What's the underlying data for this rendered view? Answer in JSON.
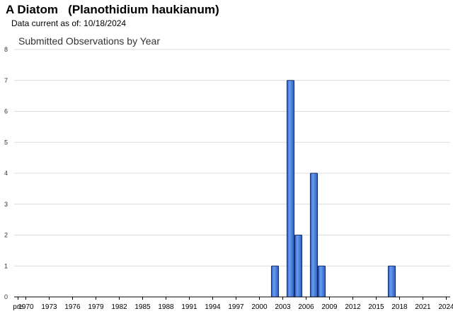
{
  "header": {
    "title": "A Diatom   (Planothidium haukianum)",
    "data_current": "Data current as of: 10/18/2024"
  },
  "chart_data": {
    "type": "bar",
    "title": "Submitted Observations by Year",
    "xlabel": "",
    "ylabel": "",
    "ylim": [
      0,
      8
    ],
    "y_ticks": [
      0,
      1,
      2,
      3,
      4,
      5,
      6,
      7,
      8
    ],
    "x_tick_labels": [
      "pre",
      "1970",
      "1973",
      "1976",
      "1979",
      "1982",
      "1985",
      "1988",
      "1991",
      "1994",
      "1997",
      "2000",
      "2003",
      "2006",
      "2009",
      "2012",
      "2015",
      "2018",
      "2021",
      "2024"
    ],
    "categories": [
      "pre",
      "1970",
      "1971",
      "1972",
      "1973",
      "1974",
      "1975",
      "1976",
      "1977",
      "1978",
      "1979",
      "1980",
      "1981",
      "1982",
      "1983",
      "1984",
      "1985",
      "1986",
      "1987",
      "1988",
      "1989",
      "1990",
      "1991",
      "1992",
      "1993",
      "1994",
      "1995",
      "1996",
      "1997",
      "1998",
      "1999",
      "2000",
      "2001",
      "2002",
      "2003",
      "2004",
      "2005",
      "2006",
      "2007",
      "2008",
      "2009",
      "2010",
      "2011",
      "2012",
      "2013",
      "2014",
      "2015",
      "2016",
      "2017",
      "2018",
      "2019",
      "2020",
      "2021",
      "2022",
      "2023",
      "2024"
    ],
    "values": [
      0,
      0,
      0,
      0,
      0,
      0,
      0,
      0,
      0,
      0,
      0,
      0,
      0,
      0,
      0,
      0,
      0,
      0,
      0,
      0,
      0,
      0,
      0,
      0,
      0,
      0,
      0,
      0,
      0,
      0,
      0,
      0,
      0,
      1,
      0,
      7,
      2,
      0,
      4,
      1,
      0,
      0,
      0,
      0,
      0,
      0,
      0,
      0,
      1,
      0,
      0,
      0,
      0,
      0,
      0,
      0
    ],
    "grid": true,
    "colors": {
      "bar": "#3a74d8",
      "bar_stroke": "#12306e",
      "grid": "#dcdcdc"
    }
  }
}
